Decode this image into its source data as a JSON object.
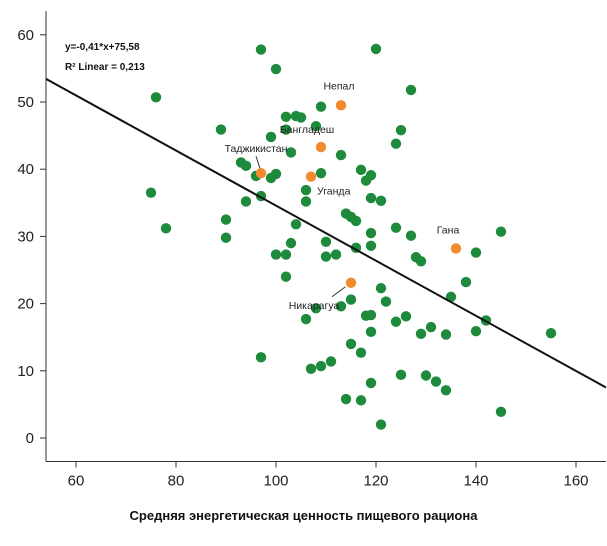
{
  "chart_data": {
    "type": "scatter",
    "xlabel": "Средняя энергетическая ценность пищевого рациона",
    "ylabel": "",
    "xlim": [
      54,
      166
    ],
    "ylim": [
      -3.5,
      63.5
    ],
    "xticks": [
      "60",
      "80",
      "100",
      "120",
      "140",
      "160"
    ],
    "yticks": [
      "0",
      "10",
      "20",
      "30",
      "40",
      "50",
      "60"
    ],
    "grid": false,
    "colors": {
      "points": "#1e8a3c",
      "highlight": "#f28a2e",
      "line": "#111111"
    },
    "equation": "y=-0,41*x+75,58",
    "r2_text": "R² Linear = 0,213",
    "fit": {
      "slope": -0.41,
      "intercept": 75.58
    },
    "points": [
      [
        75,
        36.5
      ],
      [
        76,
        50.7
      ],
      [
        78,
        31.2
      ],
      [
        89,
        45.9
      ],
      [
        90,
        32.5
      ],
      [
        90,
        29.8
      ],
      [
        93,
        41
      ],
      [
        94,
        40.5
      ],
      [
        94,
        35.2
      ],
      [
        96,
        39
      ],
      [
        97,
        57.8
      ],
      [
        97,
        36
      ],
      [
        97,
        12
      ],
      [
        99,
        44.8
      ],
      [
        99,
        38.7
      ],
      [
        100,
        54.9
      ],
      [
        100,
        39.3
      ],
      [
        100,
        27.3
      ],
      [
        102,
        47.8
      ],
      [
        102,
        45.9
      ],
      [
        102,
        27.3
      ],
      [
        102,
        24
      ],
      [
        103,
        42.5
      ],
      [
        103,
        29
      ],
      [
        104,
        47.9
      ],
      [
        104,
        31.8
      ],
      [
        105,
        47.7
      ],
      [
        106,
        36.9
      ],
      [
        106,
        35.2
      ],
      [
        106,
        17.7
      ],
      [
        107,
        10.3
      ],
      [
        108,
        46.4
      ],
      [
        108,
        19.3
      ],
      [
        109,
        49.3
      ],
      [
        109,
        39.4
      ],
      [
        109,
        10.7
      ],
      [
        110,
        29.2
      ],
      [
        110,
        27
      ],
      [
        111,
        11.4
      ],
      [
        112,
        27.3
      ],
      [
        113,
        42.1
      ],
      [
        113,
        19.6
      ],
      [
        114,
        33.4
      ],
      [
        114,
        5.8
      ],
      [
        115,
        32.9
      ],
      [
        115,
        14
      ],
      [
        115,
        20.6
      ],
      [
        116,
        32.3
      ],
      [
        116,
        28.3
      ],
      [
        117,
        39.9
      ],
      [
        117,
        12.7
      ],
      [
        117,
        5.6
      ],
      [
        118,
        38.3
      ],
      [
        118,
        18.2
      ],
      [
        119,
        39.1
      ],
      [
        119,
        35.7
      ],
      [
        119,
        30.5
      ],
      [
        119,
        28.6
      ],
      [
        119,
        18.3
      ],
      [
        119,
        15.8
      ],
      [
        119,
        8.2
      ],
      [
        120,
        57.9
      ],
      [
        121,
        35.3
      ],
      [
        121,
        22.3
      ],
      [
        121,
        2
      ],
      [
        122,
        20.3
      ],
      [
        124,
        43.8
      ],
      [
        124,
        31.3
      ],
      [
        124,
        17.3
      ],
      [
        125,
        45.8
      ],
      [
        125,
        9.4
      ],
      [
        126,
        18.1
      ],
      [
        127,
        51.8
      ],
      [
        127,
        30.1
      ],
      [
        128,
        26.9
      ],
      [
        129,
        26.3
      ],
      [
        129,
        15.5
      ],
      [
        130,
        9.3
      ],
      [
        131,
        16.5
      ],
      [
        132,
        8.4
      ],
      [
        134,
        15.4
      ],
      [
        134,
        7.1
      ],
      [
        135,
        21
      ],
      [
        138,
        23.2
      ],
      [
        140,
        27.6
      ],
      [
        140,
        15.9
      ],
      [
        142,
        17.5
      ],
      [
        145,
        30.7
      ],
      [
        145,
        3.9
      ],
      [
        155,
        15.6
      ]
    ],
    "highlighted": [
      {
        "x": 113,
        "y": 49.5,
        "label": "Непал"
      },
      {
        "x": 109,
        "y": 43.3,
        "label": "Бангладеш"
      },
      {
        "x": 97,
        "y": 39.4,
        "label": "Таджикистан"
      },
      {
        "x": 107,
        "y": 38.9,
        "label": "Уганда"
      },
      {
        "x": 136,
        "y": 28.2,
        "label": "Гана"
      },
      {
        "x": 115,
        "y": 23.1,
        "label": "Никарагуа"
      }
    ]
  }
}
